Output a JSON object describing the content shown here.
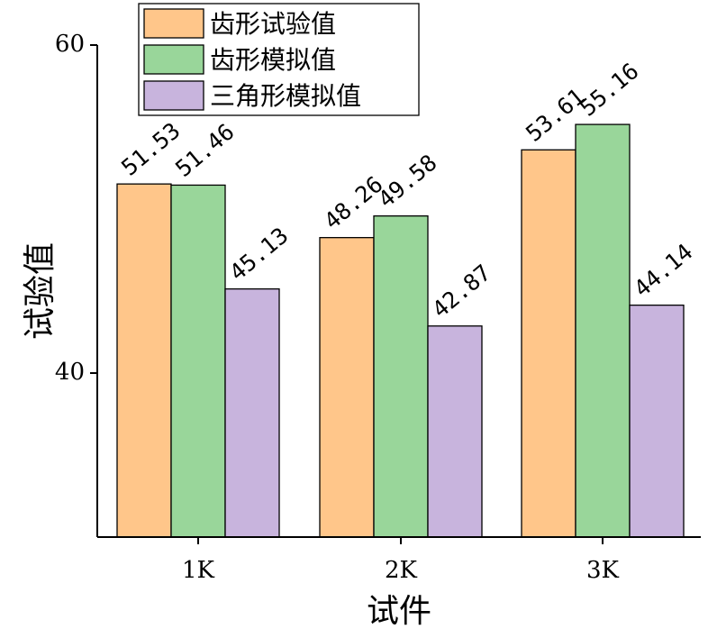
{
  "chart_data": {
    "type": "bar",
    "categories": [
      "1K",
      "2K",
      "3K"
    ],
    "series": [
      {
        "name": "齿形试验值",
        "color": "#FFC68A",
        "values": [
          51.53,
          48.26,
          53.61
        ],
        "labels": [
          "51.53",
          "48.26",
          "53.61"
        ]
      },
      {
        "name": "齿形模拟值",
        "color": "#99D69A",
        "values": [
          51.46,
          49.58,
          55.16
        ],
        "labels": [
          "51.46",
          "49.58",
          "55.16"
        ]
      },
      {
        "name": "三角形模拟值",
        "color": "#C8B4DD",
        "values": [
          45.13,
          42.87,
          44.14
        ],
        "labels": [
          "45.13",
          "42.87",
          "44.14"
        ]
      }
    ],
    "xlabel": "试件",
    "ylabel": "试验值",
    "ylim": [
      30,
      60
    ],
    "yticks": [
      {
        "value": 40,
        "label": "40"
      },
      {
        "value": 60,
        "label": "60"
      }
    ],
    "grid": false,
    "legend": "top-left"
  }
}
